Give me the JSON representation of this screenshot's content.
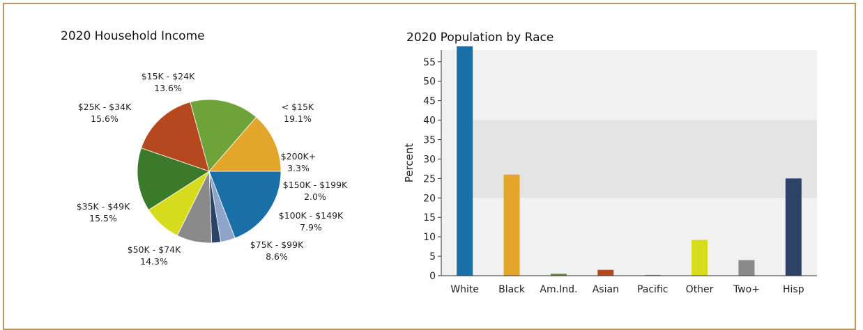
{
  "chart_data": [
    {
      "type": "pie",
      "title": "2020 Household Income",
      "slices": [
        {
          "label": "< $15K",
          "value": 19.1,
          "display": "19.1%",
          "color": "#1a6fa6"
        },
        {
          "label": "$200K+",
          "value": 3.3,
          "display": "3.3%",
          "color": "#8ea4c8"
        },
        {
          "label": "$150K - $199K",
          "value": 2.0,
          "display": "2.0%",
          "color": "#2c4266"
        },
        {
          "label": "$100K - $149K",
          "value": 7.9,
          "display": "7.9%",
          "color": "#8a8a8a"
        },
        {
          "label": "$75K - $99K",
          "value": 8.6,
          "display": "8.6%",
          "color": "#d8dc1f"
        },
        {
          "label": "$50K - $74K",
          "value": 14.3,
          "display": "14.3%",
          "color": "#3a7a2a"
        },
        {
          "label": "$35K - $49K",
          "value": 15.5,
          "display": "15.5%",
          "color": "#b5481f"
        },
        {
          "label": "$25K - $34K",
          "value": 15.6,
          "display": "15.6%",
          "color": "#6ea33a"
        },
        {
          "label": "$15K - $24K",
          "value": 13.6,
          "display": "13.6%",
          "color": "#e3a62b"
        }
      ]
    },
    {
      "type": "bar",
      "title": "2020 Population by Race",
      "ylabel": "Percent",
      "xlabel": "",
      "ylim": [
        0,
        58
      ],
      "yticks": [
        0,
        5,
        10,
        15,
        20,
        25,
        30,
        35,
        40,
        45,
        50,
        55
      ],
      "bands": [
        [
          20,
          40
        ]
      ],
      "categories": [
        "White",
        "Black",
        "Am.Ind.",
        "Asian",
        "Pacific",
        "Other",
        "Two+",
        "Hisp"
      ],
      "values": [
        59,
        26,
        0.5,
        1.5,
        0.2,
        9.2,
        4.0,
        25.0
      ],
      "colors": [
        "#1a6fa6",
        "#e3a62b",
        "#6a8a3a",
        "#b5481f",
        "#999999",
        "#d8dc1f",
        "#8a8a8a",
        "#2c4266"
      ]
    }
  ]
}
